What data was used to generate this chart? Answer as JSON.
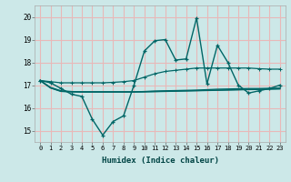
{
  "xlabel": "Humidex (Indice chaleur)",
  "bg_color": "#cce8e8",
  "grid_color": "#e8b8b8",
  "line_color": "#006666",
  "x": [
    0,
    1,
    2,
    3,
    4,
    5,
    6,
    7,
    8,
    9,
    10,
    11,
    12,
    13,
    14,
    15,
    16,
    17,
    18,
    19,
    20,
    21,
    22,
    23
  ],
  "line_volatile": [
    17.2,
    17.1,
    16.85,
    16.6,
    16.5,
    15.5,
    14.8,
    15.4,
    15.65,
    17.0,
    18.5,
    18.95,
    19.0,
    18.1,
    18.15,
    19.95,
    17.05,
    18.75,
    18.0,
    17.0,
    16.65,
    16.75,
    16.85,
    17.0
  ],
  "line_rising": [
    17.2,
    17.15,
    17.1,
    17.1,
    17.1,
    17.1,
    17.1,
    17.12,
    17.15,
    17.2,
    17.35,
    17.5,
    17.6,
    17.65,
    17.7,
    17.75,
    17.75,
    17.75,
    17.75,
    17.75,
    17.75,
    17.72,
    17.7,
    17.7
  ],
  "line_flat1": [
    17.2,
    16.9,
    16.75,
    16.72,
    16.7,
    16.7,
    16.7,
    16.7,
    16.7,
    16.7,
    16.72,
    16.74,
    16.75,
    16.76,
    16.77,
    16.78,
    16.8,
    16.82,
    16.83,
    16.84,
    16.85,
    16.85,
    16.86,
    16.87
  ],
  "line_flat2": [
    17.2,
    16.88,
    16.73,
    16.71,
    16.7,
    16.7,
    16.7,
    16.7,
    16.7,
    16.7,
    16.71,
    16.72,
    16.73,
    16.74,
    16.75,
    16.76,
    16.77,
    16.78,
    16.79,
    16.8,
    16.81,
    16.82,
    16.83,
    16.84
  ],
  "line_flat3": [
    17.2,
    16.87,
    16.72,
    16.7,
    16.7,
    16.7,
    16.7,
    16.7,
    16.7,
    16.7,
    16.7,
    16.71,
    16.72,
    16.73,
    16.74,
    16.75,
    16.76,
    16.77,
    16.78,
    16.79,
    16.8,
    16.81,
    16.82,
    16.83
  ],
  "ylim": [
    14.5,
    20.5
  ],
  "yticks": [
    15,
    16,
    17,
    18,
    19,
    20
  ],
  "xticks": [
    0,
    1,
    2,
    3,
    4,
    5,
    6,
    7,
    8,
    9,
    10,
    11,
    12,
    13,
    14,
    15,
    16,
    17,
    18,
    19,
    20,
    21,
    22,
    23
  ]
}
